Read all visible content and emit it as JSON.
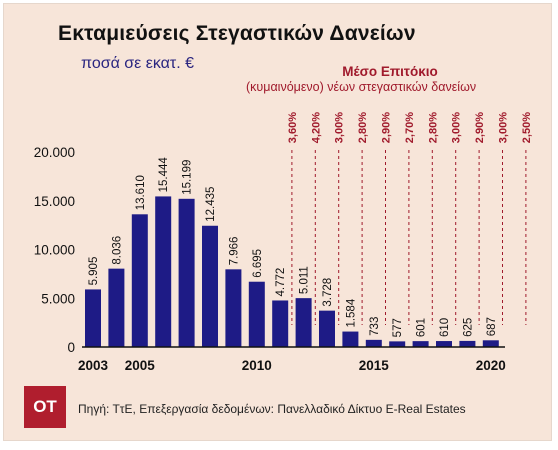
{
  "chart_data": {
    "type": "bar",
    "title": "Εκταμιεύσεις Στεγαστικών Δανείων",
    "subtitle": "ποσά σε εκατ. €",
    "categories": [
      "2003",
      "2004",
      "2005",
      "2006",
      "2007",
      "2008",
      "2009",
      "2010",
      "2011",
      "2012",
      "2013",
      "2014",
      "2015",
      "2016",
      "2017",
      "2018",
      "2019",
      "2020"
    ],
    "values": [
      5905,
      8036,
      13610,
      15444,
      15199,
      12435,
      7966,
      6695,
      4772,
      5011,
      3728,
      1584,
      733,
      577,
      601,
      610,
      625,
      687
    ],
    "value_labels": [
      "5.905",
      "8.036",
      "13.610",
      "15.444",
      "15.199",
      "12.435",
      "7.966",
      "6.695",
      "4.772",
      "5.011",
      "3.728",
      "1.584",
      "733",
      "577",
      "601",
      "610",
      "625",
      "687"
    ],
    "xtick_labels": [
      "2003",
      "2005",
      "2010",
      "2015",
      "2020"
    ],
    "ytick_labels": [
      "0",
      "5.000",
      "10.000",
      "15.000",
      "20.000"
    ],
    "yticks": [
      0,
      5000,
      10000,
      15000,
      20000
    ],
    "ylim": [
      0,
      20000
    ],
    "bar_color": "#1e1b86",
    "rate_title": "Μέσο Επιτόκιο",
    "rate_subtitle": "(κυμαινόμενο) νέων στεγαστικών δανείων",
    "rates": [
      {
        "year": "2011",
        "label": "3,60%"
      },
      {
        "year": "2012",
        "label": "4,20%"
      },
      {
        "year": "2013",
        "label": "3,00%"
      },
      {
        "year": "2014",
        "label": "2,80%"
      },
      {
        "year": "2015",
        "label": "2,90%"
      },
      {
        "year": "2016",
        "label": "2,70%"
      },
      {
        "year": "2017",
        "label": "2,80%"
      },
      {
        "year": "2018",
        "label": "3,00%"
      },
      {
        "year": "2019",
        "label": "2,90%"
      },
      {
        "year": "2020",
        "label": "3,00%"
      },
      {
        "year": "2021",
        "label": "2,50%"
      }
    ]
  },
  "logo_text": "OT",
  "source": "Πηγή: ΤτΕ, Επεξεργασία δεδομένων: Πανελλαδικό Δίκτυο E-Real Estates"
}
